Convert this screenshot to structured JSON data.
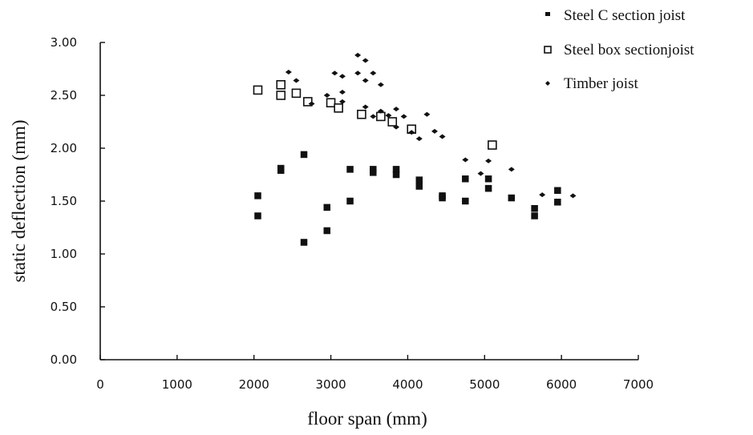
{
  "chart_data": {
    "type": "scatter",
    "xlabel": "floor span (mm)",
    "ylabel": "static deflection (mm)",
    "xlim": [
      0,
      7000
    ],
    "ylim": [
      0,
      3.0
    ],
    "x_ticks": [
      "0",
      "1000",
      "2000",
      "3000",
      "4000",
      "5000",
      "6000",
      "7000"
    ],
    "y_ticks": [
      "0.00",
      "0.50",
      "1.00",
      "1.50",
      "2.00",
      "2.50",
      "3.00"
    ],
    "grid": false,
    "legend_position": "top-right",
    "series": [
      {
        "name": "Steel C section joist",
        "marker": "filled-square",
        "points": [
          [
            2050,
            1.55
          ],
          [
            2050,
            1.36
          ],
          [
            2350,
            1.79
          ],
          [
            2350,
            1.81
          ],
          [
            2650,
            1.94
          ],
          [
            2650,
            1.11
          ],
          [
            2950,
            1.44
          ],
          [
            2950,
            1.22
          ],
          [
            3250,
            1.8
          ],
          [
            3250,
            1.5
          ],
          [
            3550,
            1.8
          ],
          [
            3550,
            1.77
          ],
          [
            3850,
            1.8
          ],
          [
            3850,
            1.75
          ],
          [
            4150,
            1.7
          ],
          [
            4150,
            1.64
          ],
          [
            4450,
            1.55
          ],
          [
            4450,
            1.53
          ],
          [
            4750,
            1.71
          ],
          [
            4750,
            1.5
          ],
          [
            5050,
            1.71
          ],
          [
            5050,
            1.62
          ],
          [
            5350,
            1.53
          ],
          [
            5650,
            1.43
          ],
          [
            5650,
            1.36
          ],
          [
            5950,
            1.6
          ],
          [
            5950,
            1.49
          ]
        ]
      },
      {
        "name": "Steel box sectionjoist",
        "marker": "open-square",
        "points": [
          [
            2050,
            2.55
          ],
          [
            2350,
            2.6
          ],
          [
            2350,
            2.5
          ],
          [
            2550,
            2.52
          ],
          [
            2700,
            2.44
          ],
          [
            3000,
            2.43
          ],
          [
            3100,
            2.38
          ],
          [
            3400,
            2.32
          ],
          [
            3650,
            2.3
          ],
          [
            3800,
            2.25
          ],
          [
            4050,
            2.18
          ],
          [
            5100,
            2.03
          ]
        ]
      },
      {
        "name": "Timber joist",
        "marker": "small-diamond",
        "points": [
          [
            2450,
            2.72
          ],
          [
            2550,
            2.64
          ],
          [
            2750,
            2.42
          ],
          [
            2950,
            2.5
          ],
          [
            3050,
            2.71
          ],
          [
            3150,
            2.68
          ],
          [
            3150,
            2.53
          ],
          [
            3150,
            2.44
          ],
          [
            3350,
            2.88
          ],
          [
            3350,
            2.71
          ],
          [
            3450,
            2.83
          ],
          [
            3450,
            2.64
          ],
          [
            3550,
            2.71
          ],
          [
            3650,
            2.6
          ],
          [
            3450,
            2.39
          ],
          [
            3550,
            2.3
          ],
          [
            3650,
            2.35
          ],
          [
            3750,
            2.31
          ],
          [
            3850,
            2.37
          ],
          [
            3950,
            2.3
          ],
          [
            3850,
            2.2
          ],
          [
            4050,
            2.15
          ],
          [
            4150,
            2.09
          ],
          [
            4250,
            2.32
          ],
          [
            4350,
            2.16
          ],
          [
            4450,
            2.11
          ],
          [
            4750,
            1.89
          ],
          [
            4950,
            1.76
          ],
          [
            5050,
            1.88
          ],
          [
            5350,
            1.8
          ],
          [
            5750,
            1.56
          ],
          [
            6150,
            1.55
          ]
        ]
      }
    ]
  }
}
